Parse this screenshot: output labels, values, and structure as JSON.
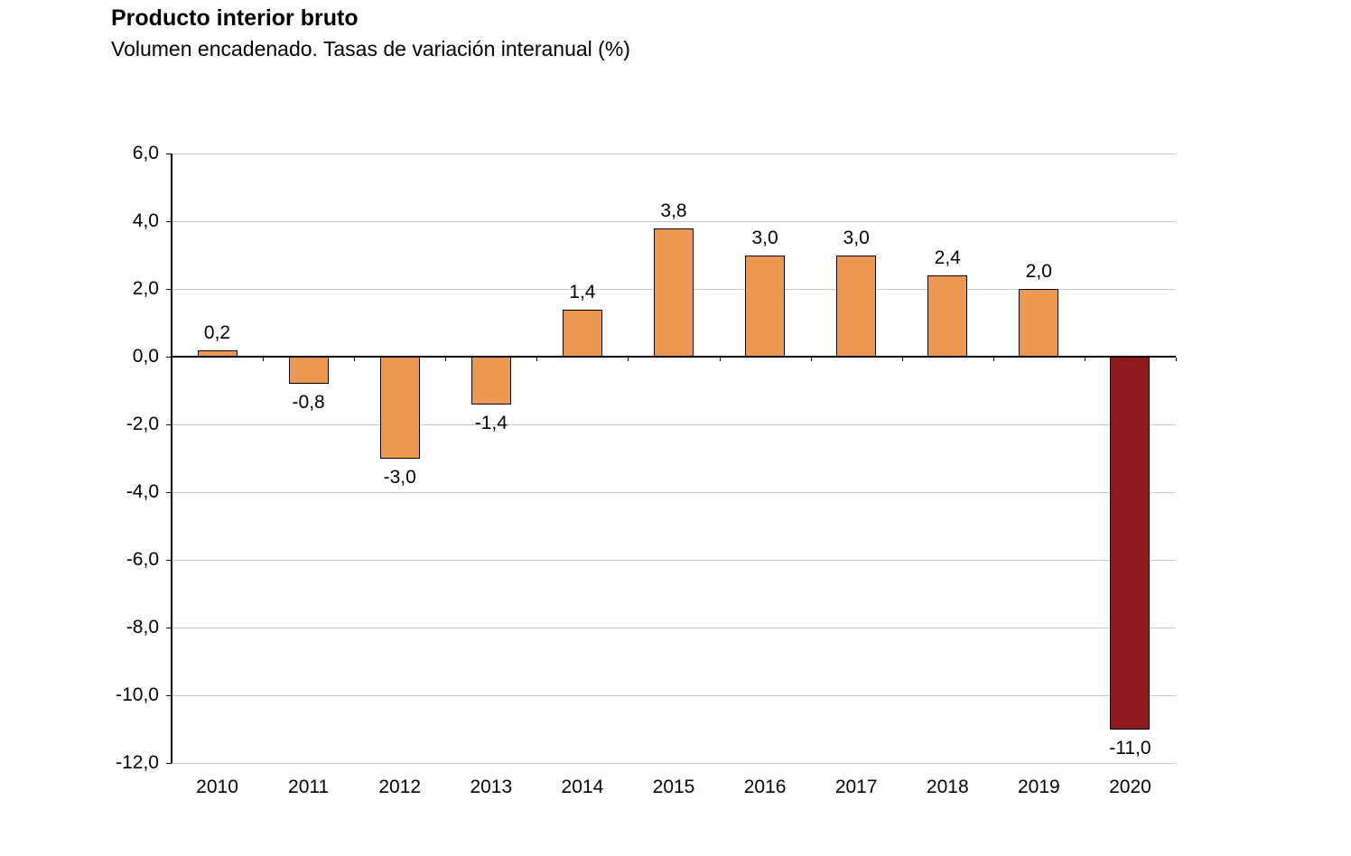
{
  "title": "Producto interior bruto",
  "subtitle": "Volumen encadenado. Tasas de variación interanual (%)",
  "chart_data": {
    "type": "bar",
    "title": "Producto interior bruto",
    "subtitle": "Volumen encadenado. Tasas de variación interanual (%)",
    "categories": [
      "2010",
      "2011",
      "2012",
      "2013",
      "2014",
      "2015",
      "2016",
      "2017",
      "2018",
      "2019",
      "2020"
    ],
    "values": [
      0.2,
      -0.8,
      -3.0,
      -1.4,
      1.4,
      3.8,
      3.0,
      3.0,
      2.4,
      2.0,
      -11.0
    ],
    "value_labels": [
      "0,2",
      "-0,8",
      "-3,0",
      "-1,4",
      "1,4",
      "3,8",
      "3,0",
      "3,0",
      "2,4",
      "2,0",
      "-11,0"
    ],
    "xlabel": "",
    "ylabel": "",
    "ylim": [
      -12.0,
      6.0
    ],
    "ytick_step": 2.0,
    "ytick_labels": [
      "6,0",
      "4,0",
      "2,0",
      "0,0",
      "-2,0",
      "-4,0",
      "-6,0",
      "-8,0",
      "-10,0",
      "-12,0"
    ],
    "grid": true,
    "legend": false,
    "bar_color": "#EC9853",
    "highlight_color": "#8D1B1E",
    "highlight_index": 10,
    "bar_border_color": "#000000",
    "gridline_color": "#C8C8C8",
    "axis_color": "#000000"
  }
}
